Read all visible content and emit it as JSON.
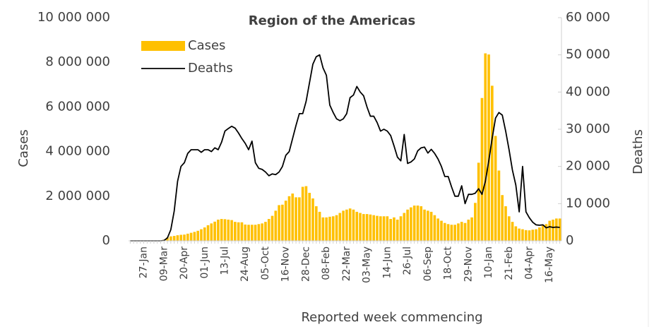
{
  "chart_data": {
    "type": "bar",
    "title": "Region of the Americas",
    "xlabel": "Reported week commencing",
    "ylabel": "Cases",
    "y2label": "Deaths",
    "categories": [
      null,
      null,
      null,
      null,
      "27-Jan",
      null,
      null,
      null,
      null,
      null,
      "09-Mar",
      null,
      null,
      null,
      null,
      null,
      "20-Apr",
      null,
      null,
      null,
      null,
      null,
      "01-Jun",
      null,
      null,
      null,
      null,
      null,
      "13-Jul",
      null,
      null,
      null,
      null,
      null,
      "24-Aug",
      null,
      null,
      null,
      null,
      null,
      "05-Oct",
      null,
      null,
      null,
      null,
      null,
      "16-Nov",
      null,
      null,
      null,
      null,
      null,
      "28-Dec",
      null,
      null,
      null,
      null,
      null,
      "08-Feb",
      null,
      null,
      null,
      null,
      null,
      "22-Mar",
      null,
      null,
      null,
      null,
      null,
      "03-May",
      null,
      null,
      null,
      null,
      null,
      "14-Jun",
      null,
      null,
      null,
      null,
      null,
      "26-Jul",
      null,
      null,
      null,
      null,
      null,
      "06-Sep",
      null,
      null,
      null,
      null,
      null,
      "18-Oct",
      null,
      null,
      null,
      null,
      null,
      "29-Nov",
      null,
      null,
      null,
      null,
      null,
      "10-Jan",
      null,
      null,
      null,
      null,
      null,
      "21-Feb",
      null,
      null,
      null,
      null,
      null,
      "04-Apr",
      null,
      null,
      null,
      null,
      null,
      "16-May",
      null,
      null,
      null
    ],
    "series": [
      {
        "name": "Cases",
        "type": "bar",
        "color": "#FFC000",
        "values": [
          0,
          0,
          0,
          0,
          0,
          0,
          0,
          0,
          0,
          10000,
          50000,
          150000,
          200000,
          220000,
          250000,
          270000,
          280000,
          320000,
          360000,
          400000,
          450000,
          520000,
          600000,
          700000,
          780000,
          860000,
          950000,
          980000,
          970000,
          950000,
          930000,
          850000,
          830000,
          830000,
          730000,
          720000,
          720000,
          720000,
          750000,
          780000,
          850000,
          980000,
          1120000,
          1350000,
          1600000,
          1620000,
          1800000,
          2000000,
          2120000,
          1950000,
          1950000,
          2420000,
          2450000,
          2150000,
          1900000,
          1550000,
          1300000,
          1050000,
          1050000,
          1080000,
          1100000,
          1150000,
          1250000,
          1350000,
          1400000,
          1450000,
          1400000,
          1300000,
          1250000,
          1200000,
          1200000,
          1180000,
          1150000,
          1120000,
          1100000,
          1100000,
          1100000,
          980000,
          1050000,
          950000,
          1100000,
          1250000,
          1400000,
          1500000,
          1580000,
          1580000,
          1550000,
          1400000,
          1350000,
          1300000,
          1150000,
          1000000,
          900000,
          800000,
          750000,
          720000,
          720000,
          780000,
          850000,
          800000,
          950000,
          1050000,
          1700000,
          3500000,
          6400000,
          8400000,
          8350000,
          6950000,
          4700000,
          3150000,
          2050000,
          1550000,
          1100000,
          850000,
          650000,
          550000,
          520000,
          480000,
          470000,
          500000,
          520000,
          600000,
          680000,
          750000,
          900000,
          950000,
          1000000,
          1000000
        ]
      },
      {
        "name": "Deaths",
        "type": "line",
        "axis": "y2",
        "color": "#000000",
        "values": [
          0,
          0,
          0,
          0,
          0,
          0,
          0,
          0,
          0,
          0,
          100,
          800,
          3000,
          8000,
          16000,
          20000,
          21000,
          23500,
          24500,
          24500,
          24500,
          23800,
          24500,
          24500,
          24000,
          25000,
          24500,
          26500,
          29500,
          30200,
          30800,
          30300,
          29000,
          27500,
          26200,
          24500,
          26800,
          21000,
          19500,
          19200,
          18500,
          17500,
          18000,
          17800,
          18500,
          20000,
          23000,
          24000,
          27500,
          31000,
          34200,
          34200,
          37500,
          42500,
          47500,
          49500,
          50000,
          46500,
          44500,
          36500,
          34500,
          32800,
          32300,
          32800,
          34200,
          38500,
          39200,
          41500,
          40000,
          39000,
          36000,
          33500,
          33500,
          31800,
          29500,
          30000,
          29500,
          28300,
          25500,
          22500,
          21500,
          28600,
          20800,
          21200,
          22000,
          24200,
          25000,
          25200,
          23600,
          24600,
          23500,
          22000,
          20000,
          17300,
          17300,
          14500,
          12000,
          12000,
          14800,
          10000,
          12500,
          12500,
          12800,
          14000,
          12500,
          16000,
          21500,
          27500,
          33000,
          34500,
          33800,
          29500,
          24500,
          19000,
          15000,
          7800,
          20000,
          7800,
          6200,
          5000,
          4300,
          4200,
          4300,
          3500,
          3800,
          3600,
          3700,
          3600
        ]
      }
    ],
    "ylim": [
      0,
      10000000
    ],
    "yticks": [
      0,
      {
        "value": 2000000,
        "label": "2 000 000"
      },
      {
        "value": 4000000,
        "label": "4 000 000"
      },
      {
        "value": 6000000,
        "label": "6 000 000"
      },
      {
        "value": 8000000,
        "label": "8 000 000"
      },
      {
        "value": 10000000,
        "label": "10 000 000"
      }
    ],
    "y2lim": [
      0,
      60000
    ],
    "y2ticks": [
      0,
      {
        "value": 10000,
        "label": "10 000"
      },
      {
        "value": 20000,
        "label": "20 000"
      },
      {
        "value": 30000,
        "label": "30 000"
      },
      {
        "value": 40000,
        "label": "40 000"
      },
      {
        "value": 50000,
        "label": "50 000"
      },
      {
        "value": 60000,
        "label": "60 000"
      }
    ],
    "grid": false,
    "legend": "upper left"
  }
}
